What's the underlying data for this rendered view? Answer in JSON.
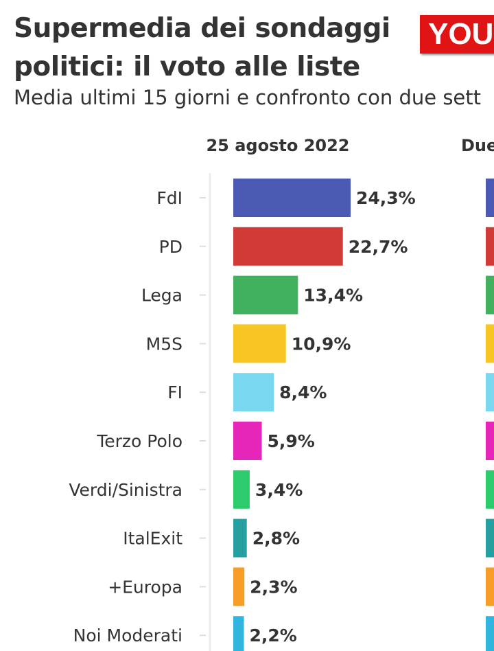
{
  "header": {
    "title": "Supermedia dei sondaggi politici: il voto alle liste",
    "subtitle": "Media ultimi 15 giorni e confronto con due sett",
    "logo_text": "YOU"
  },
  "colors": {
    "text": "#333333",
    "logo_bg": "#e01414"
  },
  "chart_data": {
    "type": "bar",
    "orientation": "horizontal",
    "columns": [
      {
        "header": "25 agosto 2022"
      },
      {
        "header": "Due"
      }
    ],
    "categories": [
      "FdI",
      "PD",
      "Lega",
      "M5S",
      "FI",
      "Terzo Polo",
      "Verdi/Sinistra",
      "ItalExit",
      "+Europa",
      "Noi Moderati"
    ],
    "values": [
      24.3,
      22.7,
      13.4,
      10.9,
      8.4,
      5.9,
      3.4,
      2.8,
      2.3,
      2.2
    ],
    "value_labels": [
      "24,3%",
      "22,7%",
      "13,4%",
      "10,9%",
      "8,4%",
      "5,9%",
      "3,4%",
      "2,8%",
      "2,3%",
      "2,2%"
    ],
    "colors": [
      "#4a5ab2",
      "#d23a35",
      "#42b15f",
      "#f7c623",
      "#79d8ef",
      "#e626b9",
      "#2ccc6c",
      "#279ea0",
      "#f79d27",
      "#31b5df"
    ],
    "xlim": [
      0,
      24.3
    ],
    "grid": false,
    "legend": "none"
  }
}
